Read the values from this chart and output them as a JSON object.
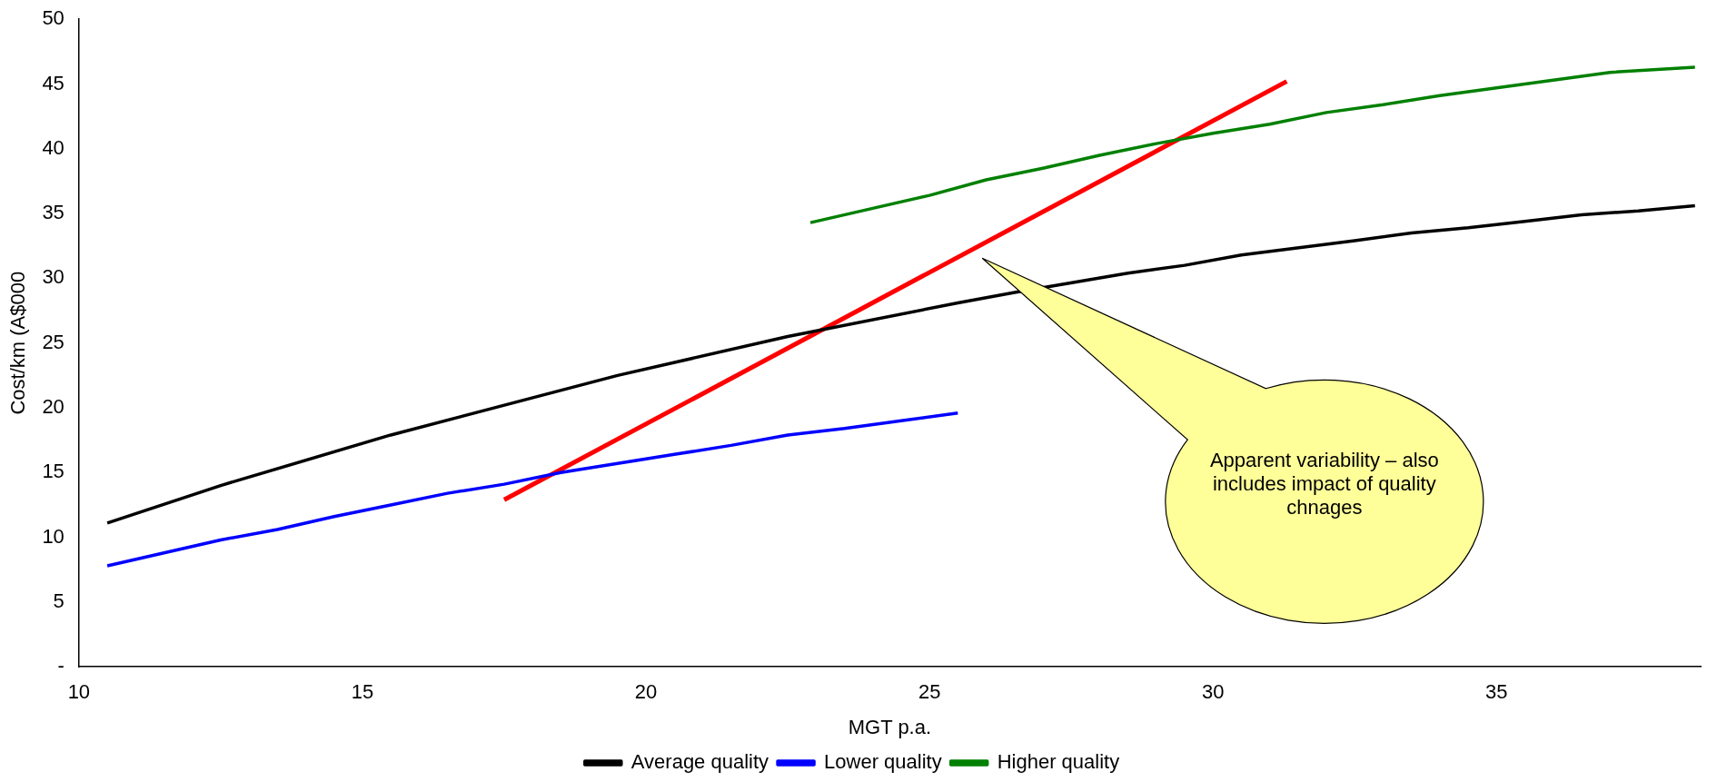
{
  "chart_data": {
    "type": "line",
    "xlabel": "MGT p.a.",
    "ylabel": "Cost/km (A$000",
    "xlim": [
      10,
      38.6
    ],
    "xticks": [
      10,
      15,
      20,
      25,
      30,
      35
    ],
    "ylim": [
      0,
      50
    ],
    "yticks": [
      {
        "value": 0,
        "label": "-"
      },
      5,
      10,
      15,
      20,
      25,
      30,
      35,
      40,
      45,
      50
    ],
    "grid": false,
    "legend": "bottom",
    "marker": "none",
    "line_style": "solid",
    "annotations": [
      "Apparent variability – also includes impact of quality chnages"
    ],
    "series": [
      {
        "name": "Average quality",
        "color": "#000000",
        "x": [
          10.5,
          12.5,
          15.5,
          19.5,
          22.5,
          25.5,
          26.5,
          28.5,
          29.5,
          30.5,
          32.5,
          33.5,
          34.5,
          35.5,
          36.5,
          37.5,
          38.5
        ],
        "values": [
          11.1,
          14.0,
          17.9,
          22.5,
          25.5,
          28.1,
          28.9,
          30.4,
          31.0,
          31.8,
          32.9,
          33.5,
          33.9,
          34.4,
          34.9,
          35.2,
          35.6
        ]
      },
      {
        "name": "Lower quality",
        "color": "#0000ff",
        "x": [
          10.5,
          12.5,
          13.5,
          14.5,
          15.5,
          16.5,
          17.5,
          18.5,
          19.5,
          20.5,
          21.5,
          22.5,
          23.5,
          24.5,
          25.5
        ],
        "values": [
          7.8,
          9.8,
          10.6,
          11.6,
          12.5,
          13.4,
          14.1,
          15.0,
          15.7,
          16.4,
          17.1,
          17.9,
          18.4,
          19.0,
          19.6
        ]
      },
      {
        "name": "Higher quality",
        "color": "#008000",
        "x": [
          22.9,
          24.0,
          25.0,
          26.0,
          27.0,
          28.0,
          29.0,
          30.0,
          31.0,
          32.0,
          33.0,
          34.0,
          35.0,
          36.0,
          37.0,
          38.5
        ],
        "values": [
          34.3,
          35.4,
          36.4,
          37.6,
          38.5,
          39.5,
          40.4,
          41.2,
          41.9,
          42.8,
          43.4,
          44.1,
          44.7,
          45.3,
          45.9,
          46.3
        ]
      },
      {
        "color": "#ff0000",
        "x": [
          17.5,
          31.3
        ],
        "values": [
          12.9,
          45.2
        ]
      }
    ]
  }
}
